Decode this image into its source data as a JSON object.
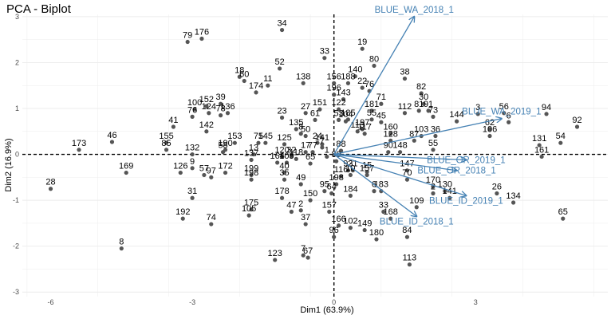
{
  "chart_data": {
    "type": "scatter",
    "subtype": "pca-biplot",
    "title": "PCA - Biplot",
    "xlabel": "Dim1 (63.9%)",
    "ylabel": "Dim2 (16.9%)",
    "xlim": [
      -6.6,
      5.8
    ],
    "ylim": [
      -3.1,
      3.05
    ],
    "xticks": [
      -6,
      -3,
      0,
      3
    ],
    "yticks": [
      -3,
      -2,
      -1,
      0,
      1,
      2,
      3
    ],
    "grid": true,
    "colors": {
      "points": "#555555",
      "vectors": "#4682B4",
      "grid": "#ececec"
    },
    "points": [
      {
        "label": "34",
        "x": -1.1,
        "y": 2.71
      },
      {
        "label": "79",
        "x": -3.1,
        "y": 2.45
      },
      {
        "label": "176",
        "x": -2.8,
        "y": 2.52
      },
      {
        "label": "19",
        "x": 0.6,
        "y": 2.3
      },
      {
        "label": "33",
        "x": -0.2,
        "y": 2.1
      },
      {
        "label": "80",
        "x": 0.85,
        "y": 1.93
      },
      {
        "label": "52",
        "x": -1.15,
        "y": 1.87
      },
      {
        "label": "140",
        "x": 0.45,
        "y": 1.7
      },
      {
        "label": "38",
        "x": 1.5,
        "y": 1.65
      },
      {
        "label": "18",
        "x": -2.0,
        "y": 1.69
      },
      {
        "label": "60",
        "x": -1.9,
        "y": 1.6
      },
      {
        "label": "138",
        "x": -0.65,
        "y": 1.55
      },
      {
        "label": "156",
        "x": 0.0,
        "y": 1.55
      },
      {
        "label": "188",
        "x": 0.3,
        "y": 1.55
      },
      {
        "label": "11",
        "x": -1.4,
        "y": 1.5
      },
      {
        "label": "22",
        "x": 0.6,
        "y": 1.45
      },
      {
        "label": "76",
        "x": 0.75,
        "y": 1.38
      },
      {
        "label": "174",
        "x": -1.65,
        "y": 1.35
      },
      {
        "label": "196",
        "x": 0.0,
        "y": 1.3
      },
      {
        "label": "82",
        "x": 1.85,
        "y": 1.33
      },
      {
        "label": "143",
        "x": 0.2,
        "y": 1.2
      },
      {
        "label": "71",
        "x": 1.0,
        "y": 1.1
      },
      {
        "label": "30",
        "x": 1.9,
        "y": 1.1
      },
      {
        "label": "39",
        "x": -2.4,
        "y": 1.1
      },
      {
        "label": "152",
        "x": -2.7,
        "y": 1.05
      },
      {
        "label": "100",
        "x": -2.95,
        "y": 0.98
      },
      {
        "label": "136",
        "x": -2.25,
        "y": 0.9
      },
      {
        "label": "124",
        "x": -2.65,
        "y": 0.9
      },
      {
        "label": "78",
        "x": -2.4,
        "y": 0.85
      },
      {
        "label": "151",
        "x": -0.3,
        "y": 0.98
      },
      {
        "label": "122",
        "x": 0.1,
        "y": 0.98
      },
      {
        "label": "81",
        "x": 1.8,
        "y": 0.95
      },
      {
        "label": "91",
        "x": 2.0,
        "y": 0.95
      },
      {
        "label": "181",
        "x": 0.8,
        "y": 0.95
      },
      {
        "label": "112",
        "x": 1.5,
        "y": 0.9
      },
      {
        "label": "27",
        "x": -0.6,
        "y": 0.9
      },
      {
        "label": "3",
        "x": 3.05,
        "y": 0.88
      },
      {
        "label": "56",
        "x": 3.6,
        "y": 0.9
      },
      {
        "label": "94",
        "x": 4.5,
        "y": 0.88
      },
      {
        "label": "76",
        "x": -3.0,
        "y": 0.82
      },
      {
        "label": "23",
        "x": -1.1,
        "y": 0.8
      },
      {
        "label": "185",
        "x": 0.3,
        "y": 0.76
      },
      {
        "label": "55",
        "x": 0.8,
        "y": 0.76
      },
      {
        "label": "73",
        "x": 2.1,
        "y": 0.82
      },
      {
        "label": "144",
        "x": 2.6,
        "y": 0.72
      },
      {
        "label": "61",
        "x": -0.4,
        "y": 0.75
      },
      {
        "label": "53",
        "x": 0.1,
        "y": 0.75
      },
      {
        "label": "104",
        "x": 0.25,
        "y": 0.72
      },
      {
        "label": "45",
        "x": 1.0,
        "y": 0.7
      },
      {
        "label": "6",
        "x": 3.7,
        "y": 0.7
      },
      {
        "label": "92",
        "x": 5.15,
        "y": 0.6
      },
      {
        "label": "41",
        "x": -3.4,
        "y": 0.6
      },
      {
        "label": "142",
        "x": -2.7,
        "y": 0.5
      },
      {
        "label": "135",
        "x": -0.8,
        "y": 0.55
      },
      {
        "label": "62",
        "x": 3.3,
        "y": 0.55
      },
      {
        "label": "197",
        "x": 0.6,
        "y": 0.55
      },
      {
        "label": "113",
        "x": 0.5,
        "y": 0.5
      },
      {
        "label": "117",
        "x": 0.65,
        "y": 0.45
      },
      {
        "label": "8",
        "x": -0.7,
        "y": 0.45
      },
      {
        "label": "50",
        "x": -0.6,
        "y": 0.4
      },
      {
        "label": "106",
        "x": 3.3,
        "y": 0.4
      },
      {
        "label": "160",
        "x": 1.2,
        "y": 0.45
      },
      {
        "label": "103",
        "x": 1.85,
        "y": 0.4
      },
      {
        "label": "36",
        "x": 2.15,
        "y": 0.4
      },
      {
        "label": "46",
        "x": -4.7,
        "y": 0.27
      },
      {
        "label": "155",
        "x": -3.55,
        "y": 0.25
      },
      {
        "label": "173",
        "x": -5.4,
        "y": 0.1
      },
      {
        "label": "153",
        "x": -2.1,
        "y": 0.25
      },
      {
        "label": "54",
        "x": 4.8,
        "y": 0.25
      },
      {
        "label": "131",
        "x": 4.35,
        "y": 0.2
      },
      {
        "label": "75",
        "x": -1.6,
        "y": 0.25
      },
      {
        "label": "145",
        "x": -1.45,
        "y": 0.25
      },
      {
        "label": "125",
        "x": -1.05,
        "y": 0.22
      },
      {
        "label": "24",
        "x": -0.35,
        "y": 0.25
      },
      {
        "label": "141",
        "x": -0.25,
        "y": 0.22
      },
      {
        "label": "128",
        "x": 1.2,
        "y": 0.3
      },
      {
        "label": "87",
        "x": 1.7,
        "y": 0.3
      },
      {
        "label": "7",
        "x": -0.25,
        "y": 0.15
      },
      {
        "label": "85",
        "x": -3.55,
        "y": 0.1
      },
      {
        "label": "190",
        "x": -2.3,
        "y": 0.1
      },
      {
        "label": "58",
        "x": -2.35,
        "y": 0.05
      },
      {
        "label": "17",
        "x": -0.6,
        "y": 0.05
      },
      {
        "label": "77",
        "x": -0.45,
        "y": 0.05
      },
      {
        "label": "55",
        "x": 2.1,
        "y": 0.1
      },
      {
        "label": "132",
        "x": -3.0,
        "y": 0.0
      },
      {
        "label": "13",
        "x": -1.7,
        "y": 0.0
      },
      {
        "label": "120",
        "x": -1.1,
        "y": -0.05
      },
      {
        "label": "32",
        "x": -0.9,
        "y": -0.05
      },
      {
        "label": "118",
        "x": -0.8,
        "y": -0.1
      },
      {
        "label": "65",
        "x": -0.5,
        "y": -0.2
      },
      {
        "label": "1",
        "x": -0.15,
        "y": -0.05
      },
      {
        "label": "88",
        "x": 0.15,
        "y": 0.08
      },
      {
        "label": "89",
        "x": 0.05,
        "y": -0.15
      },
      {
        "label": "90",
        "x": 1.15,
        "y": 0.05
      },
      {
        "label": "148",
        "x": 1.4,
        "y": 0.05
      },
      {
        "label": "164",
        "x": -1.2,
        "y": -0.18
      },
      {
        "label": "109",
        "x": -1.0,
        "y": -0.18
      },
      {
        "label": "161",
        "x": 4.4,
        "y": -0.05
      },
      {
        "label": "137",
        "x": -1.75,
        "y": -0.12
      },
      {
        "label": "9",
        "x": -3.0,
        "y": -0.3
      },
      {
        "label": "126",
        "x": -3.25,
        "y": -0.4
      },
      {
        "label": "172",
        "x": -2.3,
        "y": -0.4
      },
      {
        "label": "57",
        "x": -2.75,
        "y": -0.45
      },
      {
        "label": "97",
        "x": -2.6,
        "y": -0.5
      },
      {
        "label": "169",
        "x": -4.4,
        "y": -0.4
      },
      {
        "label": "199",
        "x": -1.75,
        "y": -0.45
      },
      {
        "label": "198",
        "x": -1.75,
        "y": -0.55
      },
      {
        "label": "40",
        "x": -1.05,
        "y": -0.4
      },
      {
        "label": "35",
        "x": -1.05,
        "y": -0.55
      },
      {
        "label": "93",
        "x": 0.3,
        "y": -0.35
      },
      {
        "label": "21",
        "x": 0.4,
        "y": -0.35
      },
      {
        "label": "15",
        "x": 0.7,
        "y": -0.38
      },
      {
        "label": "157",
        "x": 0.7,
        "y": -0.45
      },
      {
        "label": "116",
        "x": 0.15,
        "y": -0.48
      },
      {
        "label": "10",
        "x": 0.35,
        "y": -0.45
      },
      {
        "label": "147",
        "x": 1.55,
        "y": -0.35
      },
      {
        "label": "70",
        "x": 1.55,
        "y": -0.55
      },
      {
        "label": "49",
        "x": -0.7,
        "y": -0.65
      },
      {
        "label": "198",
        "x": 0.05,
        "y": -0.65
      },
      {
        "label": "95",
        "x": -0.2,
        "y": -0.8
      },
      {
        "label": "64",
        "x": -0.05,
        "y": -0.85
      },
      {
        "label": "6",
        "x": 0.85,
        "y": -0.8
      },
      {
        "label": "183",
        "x": 1.0,
        "y": -0.8
      },
      {
        "label": "170",
        "x": 2.1,
        "y": -0.7
      },
      {
        "label": "130",
        "x": 2.35,
        "y": -0.8
      },
      {
        "label": "2",
        "x": 2.1,
        "y": -0.85
      },
      {
        "label": "141",
        "x": 2.45,
        "y": -0.95
      },
      {
        "label": "26",
        "x": 3.45,
        "y": -0.85
      },
      {
        "label": "28",
        "x": -6.0,
        "y": -0.75
      },
      {
        "label": "31",
        "x": -3.0,
        "y": -0.95
      },
      {
        "label": "178",
        "x": -1.1,
        "y": -0.95
      },
      {
        "label": "150",
        "x": -0.5,
        "y": -1.0
      },
      {
        "label": "184",
        "x": 0.35,
        "y": -0.9
      },
      {
        "label": "134",
        "x": 3.8,
        "y": -1.05
      },
      {
        "label": "109",
        "x": 1.75,
        "y": -1.15
      },
      {
        "label": "175",
        "x": -1.75,
        "y": -1.2
      },
      {
        "label": "47",
        "x": -0.9,
        "y": -1.25
      },
      {
        "label": "2",
        "x": -0.7,
        "y": -1.22
      },
      {
        "label": "157",
        "x": -0.1,
        "y": -1.25
      },
      {
        "label": "33",
        "x": 1.05,
        "y": -1.25
      },
      {
        "label": "105",
        "x": -1.8,
        "y": -1.33
      },
      {
        "label": "192",
        "x": -3.2,
        "y": -1.4
      },
      {
        "label": "168",
        "x": 1.2,
        "y": -1.4
      },
      {
        "label": "65",
        "x": 4.85,
        "y": -1.4
      },
      {
        "label": "74",
        "x": -2.6,
        "y": -1.52
      },
      {
        "label": "37",
        "x": -0.6,
        "y": -1.52
      },
      {
        "label": "166",
        "x": 0.1,
        "y": -1.55
      },
      {
        "label": "102",
        "x": 0.35,
        "y": -1.6
      },
      {
        "label": "149",
        "x": 0.65,
        "y": -1.65
      },
      {
        "label": "96",
        "x": 0.0,
        "y": -1.8
      },
      {
        "label": "180",
        "x": 0.9,
        "y": -1.85
      },
      {
        "label": "84",
        "x": 1.55,
        "y": -1.8
      },
      {
        "label": "8",
        "x": -4.5,
        "y": -2.05
      },
      {
        "label": "7",
        "x": -0.65,
        "y": -2.2
      },
      {
        "label": "67",
        "x": -0.55,
        "y": -2.25
      },
      {
        "label": "123",
        "x": -1.25,
        "y": -2.3
      },
      {
        "label": "113",
        "x": 1.6,
        "y": -2.4
      }
    ],
    "vectors": [
      {
        "label": "BLUE_WA_2018_1",
        "x": 1.7,
        "y": 3.0
      },
      {
        "label": "BLUE_WA_2019_1",
        "x": 3.55,
        "y": 0.78
      },
      {
        "label": "BLUE_OR_2019_1",
        "x": 2.8,
        "y": -0.12
      },
      {
        "label": "BLUE_OR_2018_1",
        "x": 2.6,
        "y": -0.35
      },
      {
        "label": "BLUE_ID_2019_1",
        "x": 2.8,
        "y": -0.9
      },
      {
        "label": "BLUE_ID_2018_1",
        "x": 1.75,
        "y": -1.35
      }
    ],
    "vector_labels_shown": [
      "BLUE_WA_2018_1",
      "BLUE_WA_2019_1",
      "BLUE_OR_2019_1",
      "BLUE_OR_2018_1",
      "BLUE_ID_2019_1",
      "BLUE_ID_2018_1"
    ]
  }
}
